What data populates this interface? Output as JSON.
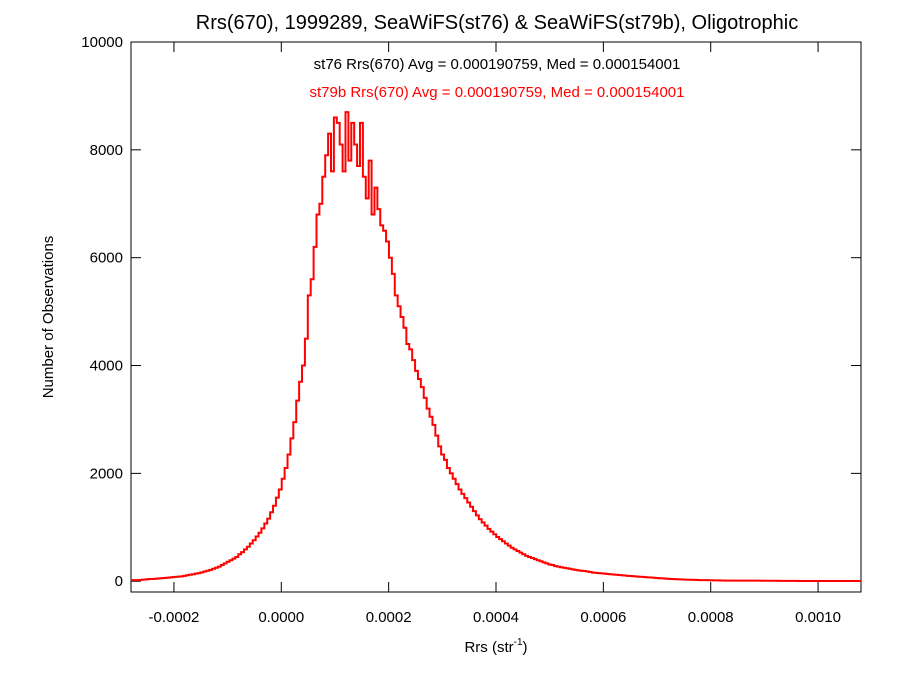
{
  "chart_data": {
    "type": "histogram",
    "title": "Rrs(670), 1999289, SeaWiFS(st76) & SeaWiFS(st79b), Oligotrophic",
    "xlabel_main": "Rrs (str",
    "xlabel_sup": "-1",
    "xlabel_close": ")",
    "ylabel": "Number of Observations",
    "xlim": [
      -0.00028,
      0.00108
    ],
    "ylim": [
      -200,
      10000
    ],
    "xticks": [
      -0.0002,
      0.0,
      0.0002,
      0.0004,
      0.0006,
      0.0008,
      0.001
    ],
    "xtick_labels": [
      "-0.0002",
      "0.0000",
      "0.0002",
      "0.0004",
      "0.0006",
      "0.0008",
      "0.0010"
    ],
    "yticks": [
      0,
      2000,
      4000,
      6000,
      8000,
      10000
    ],
    "ytick_labels": [
      "0",
      "2000",
      "4000",
      "6000",
      "8000",
      "10000"
    ],
    "annotations": [
      {
        "text": "st76 Rrs(670) Avg = 0.000190759, Med = 0.000154001",
        "color": "#000000"
      },
      {
        "text": "st79b Rrs(670) Avg = 0.000190759, Med = 0.000154001",
        "color": "#ff0000"
      }
    ],
    "series": [
      {
        "color": "#ff0000",
        "bin_start": -0.00028,
        "bin_width": 5.4e-06,
        "values": [
          20,
          20,
          20,
          25,
          30,
          35,
          40,
          40,
          45,
          50,
          55,
          60,
          65,
          70,
          75,
          80,
          85,
          90,
          100,
          110,
          120,
          130,
          140,
          150,
          165,
          180,
          195,
          210,
          230,
          250,
          270,
          300,
          330,
          360,
          390,
          420,
          450,
          500,
          540,
          590,
          640,
          700,
          760,
          830,
          900,
          980,
          1070,
          1160,
          1280,
          1400,
          1550,
          1700,
          1900,
          2100,
          2350,
          2650,
          2950,
          3350,
          3700,
          4000,
          4500,
          5300,
          5600,
          6200,
          6800,
          7000,
          7500,
          7900,
          8300,
          7600,
          8600,
          8500,
          8100,
          7600,
          8700,
          7800,
          8500,
          8100,
          7700,
          8500,
          7500,
          7100,
          7800,
          6800,
          7300,
          6900,
          6600,
          6500,
          6300,
          6000,
          5700,
          5300,
          5100,
          4900,
          4700,
          4400,
          4300,
          4100,
          3900,
          3750,
          3600,
          3400,
          3200,
          3050,
          2900,
          2700,
          2500,
          2350,
          2250,
          2100,
          2000,
          1900,
          1800,
          1700,
          1620,
          1540,
          1460,
          1380,
          1300,
          1220,
          1150,
          1090,
          1030,
          970,
          920,
          870,
          820,
          780,
          740,
          700,
          660,
          620,
          590,
          560,
          530,
          500,
          470,
          450,
          430,
          410,
          390,
          370,
          350,
          330,
          310,
          300,
          280,
          270,
          260,
          250,
          240,
          230,
          220,
          210,
          200,
          195,
          190,
          180,
          170,
          160,
          155,
          150,
          145,
          140,
          135,
          130,
          125,
          120,
          115,
          110,
          105,
          100,
          96,
          92,
          88,
          84,
          80,
          76,
          72,
          68,
          64,
          60,
          56,
          52,
          48,
          44,
          40,
          38,
          36,
          34,
          32,
          30,
          28,
          26,
          24,
          22,
          20,
          20,
          20,
          18,
          18,
          16,
          16,
          14,
          14,
          12,
          12,
          10,
          10,
          10,
          10,
          10,
          10,
          10,
          10,
          10,
          10,
          8,
          8,
          8,
          8,
          8,
          8,
          6,
          6,
          6,
          6,
          6,
          6,
          6,
          5,
          5,
          5,
          5,
          5,
          5,
          5,
          5,
          5,
          5,
          5,
          5,
          5,
          5,
          5,
          5,
          5,
          5,
          5,
          5,
          5,
          5
        ]
      }
    ],
    "grid": false,
    "legend": "none"
  }
}
